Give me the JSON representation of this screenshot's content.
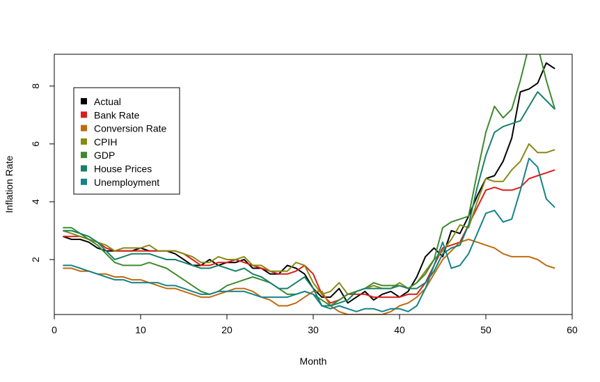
{
  "chart_data": {
    "type": "line",
    "title": "",
    "xlabel": "Month",
    "ylabel": "Inflation Rate",
    "xlim": [
      0,
      60
    ],
    "ylim": [
      0.1,
      9.1
    ],
    "xticks": [
      0,
      10,
      20,
      30,
      40,
      50,
      60
    ],
    "yticks": [
      2,
      4,
      6,
      8
    ],
    "legend_position": "top-left",
    "grid": false,
    "x": [
      1,
      2,
      3,
      4,
      5,
      6,
      7,
      8,
      9,
      10,
      11,
      12,
      13,
      14,
      15,
      16,
      17,
      18,
      19,
      20,
      21,
      22,
      23,
      24,
      25,
      26,
      27,
      28,
      29,
      30,
      31,
      32,
      33,
      34,
      35,
      36,
      37,
      38,
      39,
      40,
      41,
      42,
      43,
      44,
      45,
      46,
      47,
      48,
      49,
      50,
      51,
      52,
      53,
      54,
      55,
      56,
      57,
      58
    ],
    "series": [
      {
        "name": "Actual",
        "color": "#000000",
        "values": [
          2.8,
          2.7,
          2.7,
          2.6,
          2.4,
          2.3,
          2.3,
          2.3,
          2.3,
          2.4,
          2.3,
          2.3,
          2.3,
          2.2,
          2.0,
          1.8,
          1.8,
          2.0,
          1.8,
          1.9,
          1.9,
          2.0,
          1.7,
          1.7,
          1.5,
          1.5,
          1.8,
          1.7,
          1.5,
          1.0,
          0.7,
          0.7,
          1.0,
          0.5,
          0.7,
          0.9,
          0.6,
          0.8,
          0.9,
          0.7,
          0.9,
          1.4,
          2.1,
          2.4,
          2.1,
          3.0,
          2.9,
          3.5,
          4.2,
          4.8,
          4.9,
          5.4,
          6.2,
          7.8,
          7.9,
          8.1,
          8.8,
          8.6
        ]
      },
      {
        "name": "Bank Rate",
        "color": "#dd1c1c",
        "values": [
          2.8,
          2.8,
          2.8,
          2.7,
          2.6,
          2.4,
          2.3,
          2.3,
          2.3,
          2.3,
          2.3,
          2.3,
          2.3,
          2.3,
          2.2,
          2.0,
          1.8,
          1.8,
          1.9,
          1.9,
          2.0,
          1.9,
          1.8,
          1.7,
          1.6,
          1.5,
          1.5,
          1.6,
          1.8,
          1.5,
          0.8,
          0.5,
          0.6,
          0.8,
          0.8,
          0.8,
          0.7,
          0.7,
          0.7,
          0.7,
          0.8,
          0.8,
          1.2,
          1.8,
          2.4,
          2.5,
          2.6,
          3.2,
          3.8,
          4.4,
          4.5,
          4.4,
          4.4,
          4.5,
          4.8,
          4.9,
          5.0,
          5.1
        ]
      },
      {
        "name": "Conversion Rate",
        "color": "#c06a0e",
        "values": [
          1.7,
          1.7,
          1.6,
          1.6,
          1.5,
          1.5,
          1.4,
          1.4,
          1.3,
          1.3,
          1.2,
          1.1,
          1.0,
          1.0,
          0.9,
          0.8,
          0.7,
          0.7,
          0.8,
          0.9,
          1.0,
          1.0,
          0.9,
          0.7,
          0.6,
          0.4,
          0.4,
          0.5,
          0.7,
          0.9,
          0.9,
          0.4,
          0.2,
          0.1,
          0.1,
          0.1,
          0.1,
          0.1,
          0.2,
          0.4,
          0.5,
          0.7,
          1.0,
          1.5,
          2.0,
          2.3,
          2.6,
          2.7,
          2.6,
          2.5,
          2.4,
          2.2,
          2.1,
          2.1,
          2.1,
          2.0,
          1.8,
          1.7
        ]
      },
      {
        "name": "CPIH",
        "color": "#868a12",
        "values": [
          3.0,
          2.9,
          2.8,
          2.7,
          2.6,
          2.5,
          2.3,
          2.4,
          2.4,
          2.4,
          2.5,
          2.3,
          2.3,
          2.3,
          2.2,
          2.1,
          1.9,
          1.9,
          2.1,
          2.0,
          2.0,
          2.1,
          1.8,
          1.8,
          1.6,
          1.6,
          1.6,
          1.9,
          1.8,
          1.2,
          0.8,
          0.9,
          1.2,
          0.8,
          0.9,
          1.0,
          1.1,
          1.0,
          1.0,
          1.2,
          1.0,
          1.2,
          1.6,
          2.0,
          2.3,
          2.7,
          3.2,
          3.1,
          4.0,
          4.8,
          4.7,
          4.7,
          5.1,
          5.4,
          6.0,
          5.7,
          5.7,
          5.8
        ]
      },
      {
        "name": "GDP",
        "color": "#3c8a2c",
        "values": [
          3.1,
          3.1,
          2.9,
          2.7,
          2.5,
          2.2,
          1.9,
          1.8,
          1.8,
          1.8,
          1.9,
          1.8,
          1.7,
          1.5,
          1.3,
          1.1,
          0.9,
          0.8,
          0.9,
          1.1,
          1.2,
          1.3,
          1.4,
          1.3,
          1.2,
          1.0,
          0.8,
          0.8,
          0.9,
          0.8,
          0.6,
          0.4,
          0.6,
          0.8,
          0.9,
          1.0,
          1.2,
          1.1,
          1.1,
          1.1,
          1.0,
          1.2,
          1.5,
          2.0,
          3.1,
          3.3,
          3.4,
          3.5,
          5.0,
          6.4,
          7.3,
          6.9,
          7.2,
          8.2,
          9.4,
          9.4,
          8.2,
          7.2
        ]
      },
      {
        "name": "House Prices",
        "color": "#168068",
        "values": [
          3.0,
          3.0,
          2.9,
          2.8,
          2.6,
          2.3,
          2.0,
          2.1,
          2.2,
          2.2,
          2.2,
          2.1,
          2.0,
          2.0,
          1.9,
          1.8,
          1.7,
          1.7,
          1.8,
          1.7,
          1.6,
          1.7,
          1.5,
          1.4,
          1.2,
          1.0,
          1.0,
          1.2,
          1.4,
          1.0,
          0.4,
          0.4,
          0.5,
          0.6,
          0.9,
          1.0,
          1.0,
          1.0,
          1.0,
          1.1,
          1.0,
          1.0,
          1.2,
          1.6,
          2.2,
          2.4,
          2.5,
          3.2,
          4.5,
          5.6,
          6.4,
          6.6,
          6.7,
          6.8,
          7.3,
          7.8,
          7.5,
          7.2
        ]
      },
      {
        "name": "Unemployment",
        "color": "#138289",
        "values": [
          1.8,
          1.8,
          1.7,
          1.6,
          1.5,
          1.4,
          1.3,
          1.3,
          1.2,
          1.2,
          1.2,
          1.2,
          1.1,
          1.1,
          1.0,
          0.9,
          0.8,
          0.8,
          0.9,
          0.9,
          0.9,
          0.9,
          0.8,
          0.7,
          0.7,
          0.7,
          0.7,
          0.8,
          0.9,
          0.8,
          0.4,
          0.3,
          0.4,
          0.3,
          0.2,
          0.3,
          0.3,
          0.2,
          0.3,
          0.3,
          0.2,
          0.4,
          1.0,
          1.8,
          2.6,
          1.7,
          1.8,
          2.2,
          2.9,
          3.6,
          3.7,
          3.3,
          3.4,
          4.4,
          5.5,
          5.2,
          4.1,
          3.8
        ]
      }
    ]
  }
}
